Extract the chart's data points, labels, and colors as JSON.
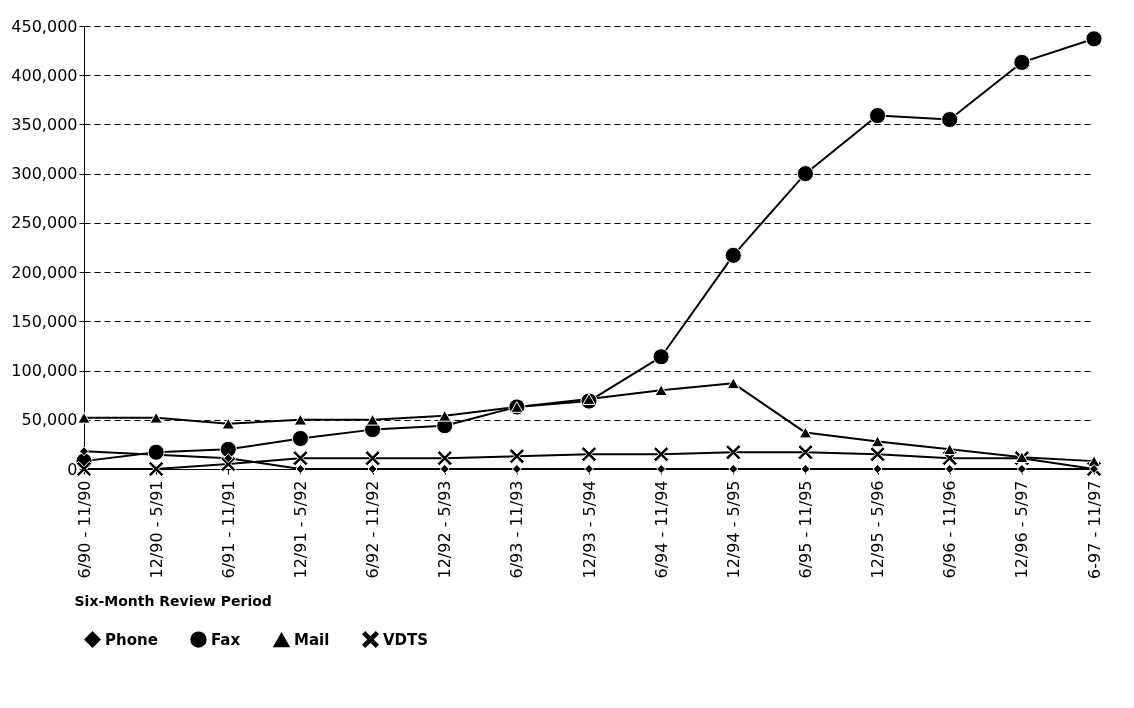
{
  "chart_data": {
    "type": "line",
    "xlabel": "Six-Month Review Period",
    "categories": [
      "6/90 - 11/90",
      "12/90 - 5/91",
      "6/91 - 11/91",
      "12/91 - 5/92",
      "6/92 - 11/92",
      "12/92 - 5/93",
      "6/93 - 11/93",
      "12/93 - 5/94",
      "6/94 - 11/94",
      "12/94 - 5/95",
      "6/95 - 11/95",
      "12/95 - 5/96",
      "6/96 - 11/96",
      "12/96 - 5/97",
      "6-97 - 11/97"
    ],
    "series": [
      {
        "name": "Phone",
        "color": "#000000",
        "marker": "diamond",
        "values": [
          18000,
          null,
          11000,
          0,
          0,
          0,
          0,
          0,
          0,
          0,
          0,
          0,
          0,
          0,
          0
        ]
      },
      {
        "name": "Fax",
        "color": "#000000",
        "marker": "circle",
        "values": [
          8000,
          17000,
          20000,
          31000,
          40000,
          44000,
          63000,
          69000,
          114000,
          217000,
          300000,
          359000,
          355000,
          413000,
          437000
        ]
      },
      {
        "name": "Mail",
        "color": "#000000",
        "marker": "triangle",
        "values": [
          52000,
          52000,
          46000,
          50000,
          50000,
          54000,
          63000,
          71000,
          80000,
          87000,
          37000,
          28000,
          20000,
          12000,
          8000
        ]
      },
      {
        "name": "VDTS",
        "color": "#000000",
        "marker": "cross",
        "values": [
          0,
          0,
          5000,
          11000,
          11000,
          11000,
          13000,
          15000,
          15000,
          17000,
          17000,
          15000,
          11000,
          11000,
          0
        ]
      }
    ],
    "ylim": [
      0,
      450000
    ],
    "yticks": [
      0,
      {
        "value": 50000,
        "label": "50,000"
      },
      {
        "value": 100000,
        "label": "100,000"
      },
      {
        "value": 150000,
        "label": "150,000"
      },
      {
        "value": 200000,
        "label": "200,000"
      },
      {
        "value": 250000,
        "label": "250,000"
      },
      {
        "value": 300000,
        "label": "300,000"
      },
      {
        "value": 350000,
        "label": "350,000"
      },
      {
        "value": 400000,
        "label": "400,000"
      },
      {
        "value": 450000,
        "label": "450,000"
      }
    ],
    "grid": "y",
    "legend": "bottom"
  }
}
